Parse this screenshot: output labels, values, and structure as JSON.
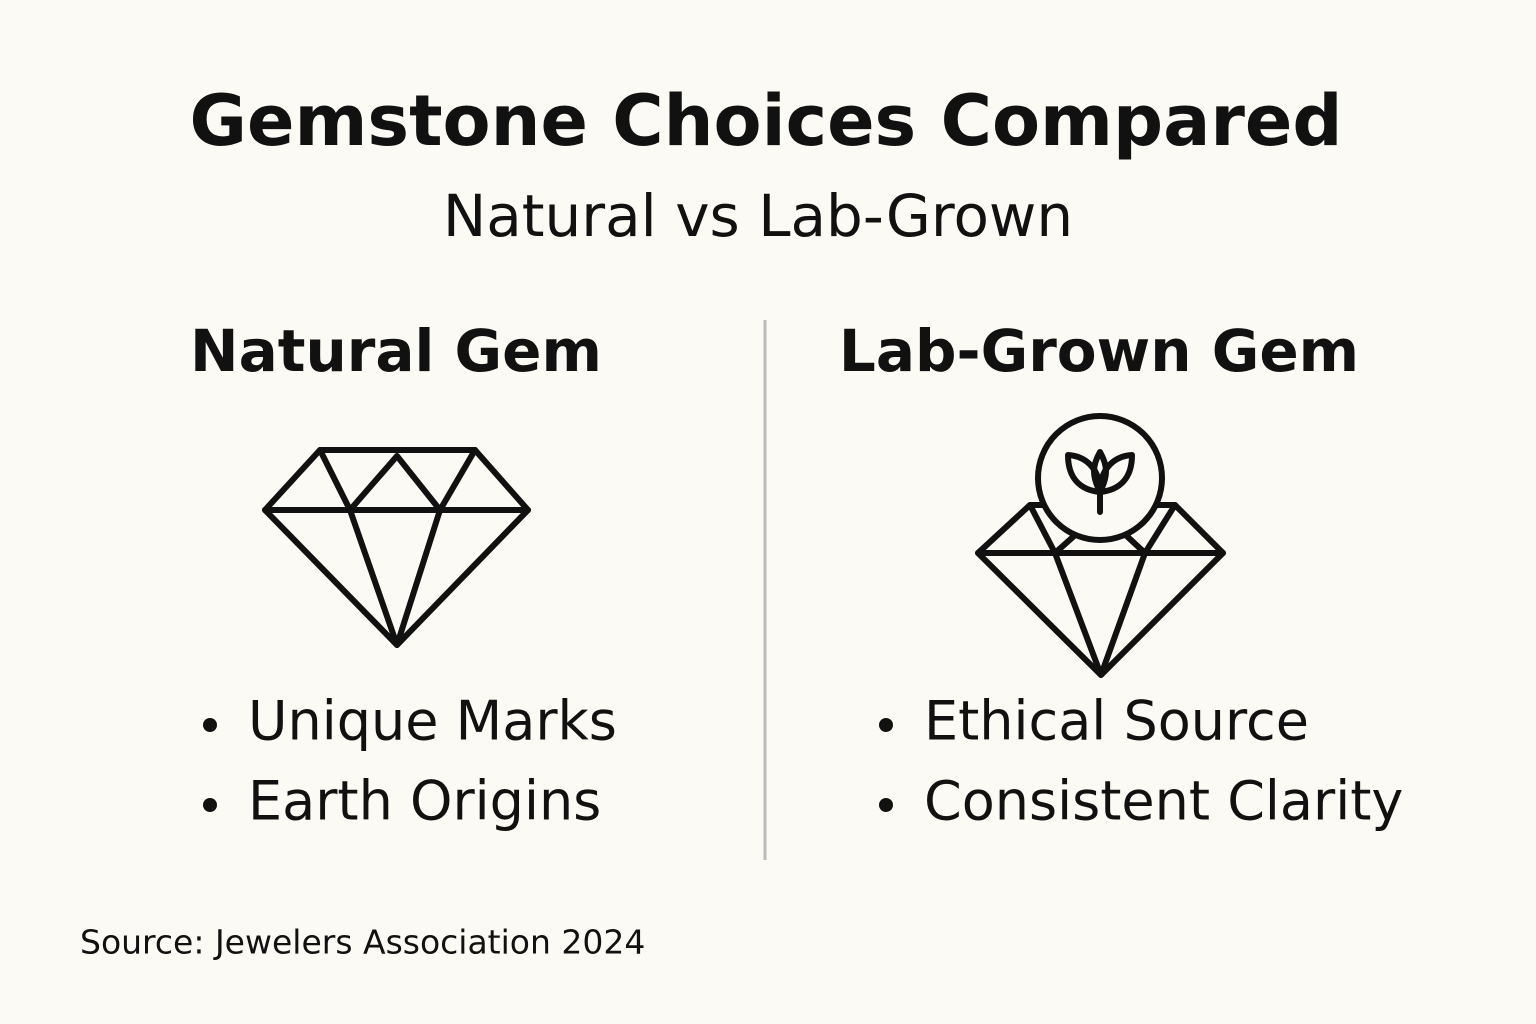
{
  "title": "Gemstone Choices Compared",
  "subtitle": "Natural vs Lab-Grown",
  "columns": [
    {
      "heading": "Natural Gem",
      "points": [
        "Unique Marks",
        "Earth Origins"
      ]
    },
    {
      "heading": "Lab-Grown Gem",
      "points": [
        "Ethical Source",
        "Consistent Clarity"
      ]
    }
  ],
  "source": "Source: Jewelers Association 2024"
}
